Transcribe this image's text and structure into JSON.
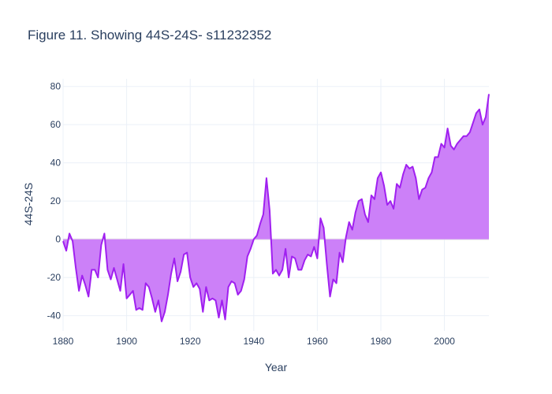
{
  "chart_data": {
    "type": "area",
    "title": "Figure 11. Showing 44S-24S- s11232352",
    "xlabel": "Year",
    "ylabel": "44S-24S",
    "xlim": [
      1880,
      2014
    ],
    "ylim": [
      -48,
      84
    ],
    "xticks": [
      1880,
      1900,
      1920,
      1940,
      1960,
      1980,
      2000
    ],
    "yticks": [
      -40,
      -20,
      0,
      20,
      40,
      60,
      80
    ],
    "grid": true,
    "legend": "none",
    "colors": {
      "line": "#a020f0",
      "fill": "#cc80f8",
      "grid": "#ebf0f8",
      "zero_line": "#e8e8e8",
      "text": "#2a3f5f"
    },
    "x_start": 1880,
    "x_step": 1,
    "values": [
      -1,
      -6,
      3,
      -1,
      -15,
      -27,
      -19,
      -24,
      -30,
      -16,
      -16,
      -20,
      -3,
      3,
      -16,
      -21,
      -15,
      -21,
      -27,
      -13,
      -31,
      -29,
      -27,
      -37,
      -36,
      -37,
      -23,
      -25,
      -31,
      -38,
      -32,
      -43,
      -38,
      -29,
      -18,
      -10,
      -22,
      -17,
      -8,
      -7,
      -20,
      -25,
      -23,
      -26,
      -38,
      -25,
      -32,
      -31,
      -32,
      -41,
      -32,
      -42,
      -25,
      -22,
      -23,
      -29,
      -27,
      -21,
      -9,
      -5,
      0,
      2,
      8,
      13,
      32,
      15,
      -18,
      -16,
      -19,
      -16,
      -5,
      -20,
      -9,
      -10,
      -16,
      -16,
      -11,
      -8,
      -9,
      -4,
      -10,
      11,
      6,
      -13,
      -30,
      -21,
      -23,
      -7,
      -12,
      1,
      9,
      5,
      14,
      20,
      21,
      13,
      9,
      23,
      21,
      32,
      35,
      28,
      18,
      20,
      16,
      29,
      27,
      34,
      39,
      37,
      38,
      32,
      21,
      26,
      27,
      32,
      35,
      43,
      43,
      50,
      48,
      58,
      49,
      47,
      50,
      52,
      54,
      54,
      56,
      61,
      66,
      68,
      60,
      64,
      76
    ]
  }
}
